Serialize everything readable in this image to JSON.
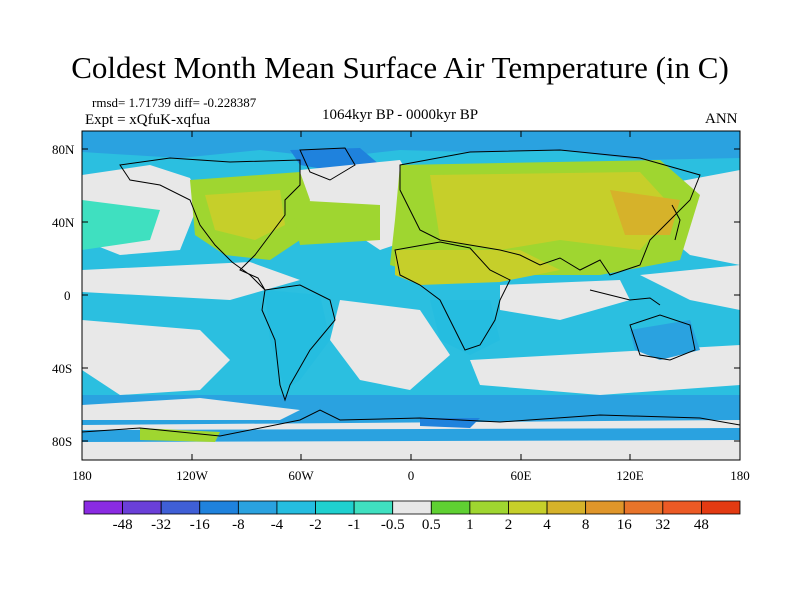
{
  "title": "Coldest Month Mean Surface Air Temperature (in C)",
  "stats": {
    "rmsd_diff": "rmsd= 1.71739 diff= -0.228387",
    "expt": "Expt = xQfuK-xqfua",
    "period": "1064kyr BP - 0000kyr BP",
    "season": "ANN"
  },
  "map": {
    "lat_labels": [
      "80N",
      "40N",
      "0",
      "40S",
      "80S"
    ],
    "lon_labels": [
      "180",
      "120W",
      "60W",
      "0",
      "60E",
      "120E",
      "180"
    ]
  },
  "colorbar": {
    "labels": [
      "-48",
      "-32",
      "-16",
      "-8",
      "-4",
      "-2",
      "-1",
      "-0.5",
      "0.5",
      "1",
      "2",
      "4",
      "8",
      "16",
      "32",
      "48"
    ],
    "colors": [
      "#8a2be2",
      "#6a3fd8",
      "#3f5fd6",
      "#1f82dd",
      "#2aa2e0",
      "#25bde0",
      "#1fd0cf",
      "#3fe0c0",
      "#e8e8e8",
      "#5fd032",
      "#9fd630",
      "#c6cf2a",
      "#d6b22a",
      "#e0962a",
      "#e8742a",
      "#ec5a25",
      "#e33a12"
    ]
  }
}
